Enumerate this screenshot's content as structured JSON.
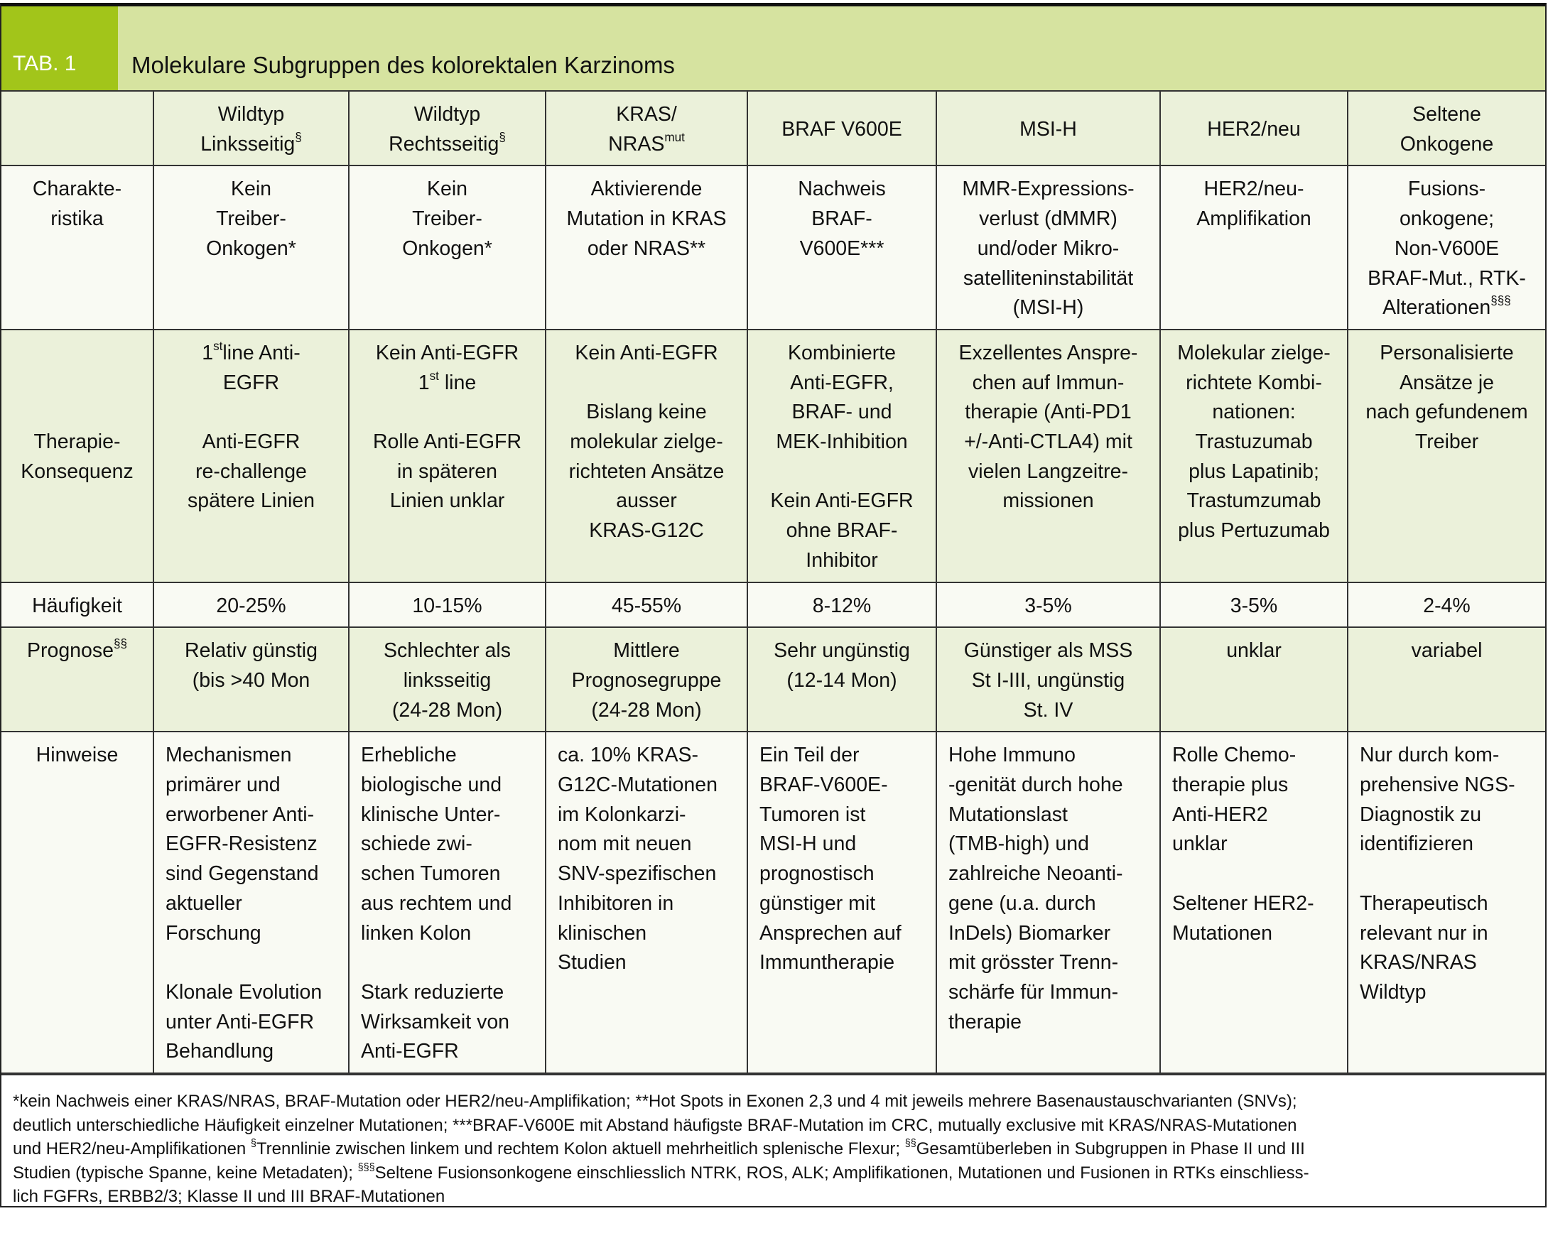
{
  "tab_label": "TAB. 1",
  "title": "Molekulare Subgruppen des kolorektalen Karzinoms",
  "colors": {
    "tab_box": "#a2c51a",
    "title_band": "#d6e3a0",
    "row_green": "#ebf1da",
    "row_pale": "#f9faf3"
  },
  "header": [
    "",
    [
      {
        "t": "Wildtyp\nLinksseitig"
      },
      {
        "sup": "§"
      }
    ],
    [
      {
        "t": "Wildtyp\nRechtsseitig"
      },
      {
        "sup": "§"
      }
    ],
    [
      {
        "t": "KRAS/\nNRAS"
      },
      {
        "sup": "mut"
      }
    ],
    "BRAF V600E",
    "MSI-H",
    "HER2/neu",
    "Seltene\nOnkogene"
  ],
  "rows": [
    {
      "style": "pale",
      "label": "Charakte-\nristika",
      "cells": [
        "Kein\nTreiber-\nOnkogen*",
        "Kein\nTreiber-\nOnkogen*",
        "Aktivierende\nMutation in KRAS\noder NRAS**",
        "Nachweis\nBRAF-\nV600E***",
        "MMR-Expressions-\nverlust (dMMR)\nund/oder Mikro-\nsatelliteninstabilität\n(MSI-H)",
        "HER2/neu-\nAmplifikation",
        [
          {
            "t": "Fusions-\nonkogene;\nNon-V600E\nBRAF-Mut., RTK-\nAlterationen"
          },
          {
            "sup": "§§§"
          }
        ]
      ]
    },
    {
      "style": "green",
      "label": "Therapie-\nKonsequenz",
      "label_mid": true,
      "cells": [
        [
          {
            "t": "1"
          },
          {
            "sup": "st"
          },
          {
            "t": "line Anti-\nEGFR\n\nAnti-EGFR\nre-challenge\nspätere Linien"
          }
        ],
        [
          {
            "t": "Kein Anti-EGFR\n1"
          },
          {
            "sup": "st"
          },
          {
            "t": " line\n\nRolle Anti-EGFR\nin späteren\nLinien unklar"
          }
        ],
        "Kein Anti-EGFR\n\nBislang keine\nmolekular zielge-\nrichteten Ansätze\nausser\nKRAS-G12C",
        "Kombinierte\nAnti-EGFR,\nBRAF- und\nMEK-Inhibition\n\nKein Anti-EGFR\nohne BRAF-\nInhibitor",
        "Exzellentes Anspre-\nchen auf Immun-\ntherapie (Anti-PD1\n+/-Anti-CTLA4) mit\nvielen Langzeitre-\nmissionen",
        "Molekular zielge-\nrichtete Kombi-\nnationen:\nTrastuzumab\nplus Lapatinib;\nTrastumzumab\nplus Pertuzumab",
        "Personalisierte\nAnsätze je\nnach gefundenem\nTreiber"
      ]
    },
    {
      "style": "pale",
      "label": "Häufigkeit",
      "cells": [
        "20-25%",
        "10-15%",
        "45-55%",
        "8-12%",
        "3-5%",
        "3-5%",
        "2-4%"
      ]
    },
    {
      "style": "green",
      "label": [
        {
          "t": "Prognose"
        },
        {
          "sup": "§§"
        }
      ],
      "cells": [
        "Relativ günstig\n(bis >40 Mon",
        "Schlechter als\nlinksseitig\n(24-28 Mon)",
        "Mittlere\nPrognosegruppe\n(24-28 Mon)",
        "Sehr ungünstig\n(12-14 Mon)",
        "Günstiger als MSS\nSt I-III, ungünstig\nSt. IV",
        "unklar",
        "variabel"
      ]
    },
    {
      "style": "pale",
      "label": "Hinweise",
      "left": true,
      "cells": [
        "Mechanismen\nprimärer und\nerworbener Anti-\nEGFR-Resistenz\nsind Gegenstand\naktueller\nForschung\n\nKlonale Evolution\nunter Anti-EGFR\nBehandlung",
        "Erhebliche\nbiologische und\nklinische Unter-\nschiede zwi-\nschen Tumoren\naus rechtem und\nlinken Kolon\n\nStark reduzierte\nWirksamkeit von\nAnti-EGFR",
        "ca. 10% KRAS-\nG12C-Mutationen\nim Kolonkarzi-\nnom mit neuen\nSNV-spezifischen\nInhibitoren in\nklinischen\nStudien",
        "Ein Teil der\nBRAF-V600E-\nTumoren ist\nMSI-H und\nprognostisch\ngünstiger mit\nAnsprechen auf\nImmuntherapie",
        "Hohe Immuno\n-genität durch hohe\nMutationslast\n(TMB-high) und\nzahlreiche Neoanti-\ngene (u.a. durch\nInDels) Biomarker\nmit grösster Trenn-\nschärfe für Immun-\ntherapie",
        "Rolle Chemo-\ntherapie plus\nAnti-HER2\nunklar\n\nSeltener HER2-\nMutationen",
        "Nur durch kom-\nprehensive NGS-\nDiagnostik zu\nidentifizieren\n\nTherapeutisch\nrelevant nur in\nKRAS/NRAS\nWildtyp"
      ]
    }
  ],
  "footnote": [
    {
      "t": "*kein Nachweis einer KRAS/NRAS, BRAF-Mutation oder HER2/neu-Amplifikation; **Hot Spots in Exonen 2,3 und 4 mit jeweils mehrere Basenaustauschvarianten (SNVs);\ndeutlich unterschiedliche Häufigkeit einzelner Mutationen; ***BRAF-V600E mit Abstand häufigste BRAF-Mutation im CRC, mutually exclusive mit KRAS/NRAS-Mutationen\nund HER2/neu-Amplifikationen "
    },
    {
      "sup": "§"
    },
    {
      "t": "Trennlinie zwischen linkem und rechtem Kolon aktuell mehrheitlich splenische Flexur; "
    },
    {
      "sup": "§§"
    },
    {
      "t": "Gesamtüberleben in Subgruppen in Phase II und III\nStudien (typische Spanne, keine Metadaten); "
    },
    {
      "sup": "§§§"
    },
    {
      "t": "Seltene Fusionsonkogene einschliesslich NTRK, ROS, ALK; Amplifikationen, Mutationen und Fusionen in RTKs einschliess-\nlich FGFRs, ERBB2/3; Klasse II und III BRAF-Mutationen"
    }
  ]
}
